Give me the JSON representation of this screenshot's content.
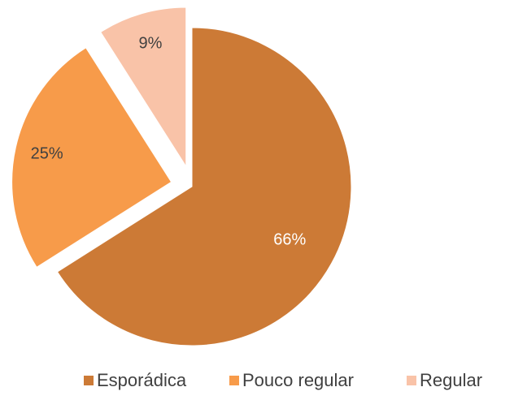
{
  "chart_data": {
    "type": "pie",
    "categories": [
      "Esporádica",
      "Pouco regular",
      "Regular"
    ],
    "values": [
      66,
      25,
      9
    ],
    "value_labels": [
      "66%",
      "25%",
      "9%"
    ],
    "colors": [
      "#cc7a36",
      "#f79b4a",
      "#f9c3a8"
    ],
    "exploded": [
      false,
      true,
      true
    ],
    "legend": "bottom"
  }
}
